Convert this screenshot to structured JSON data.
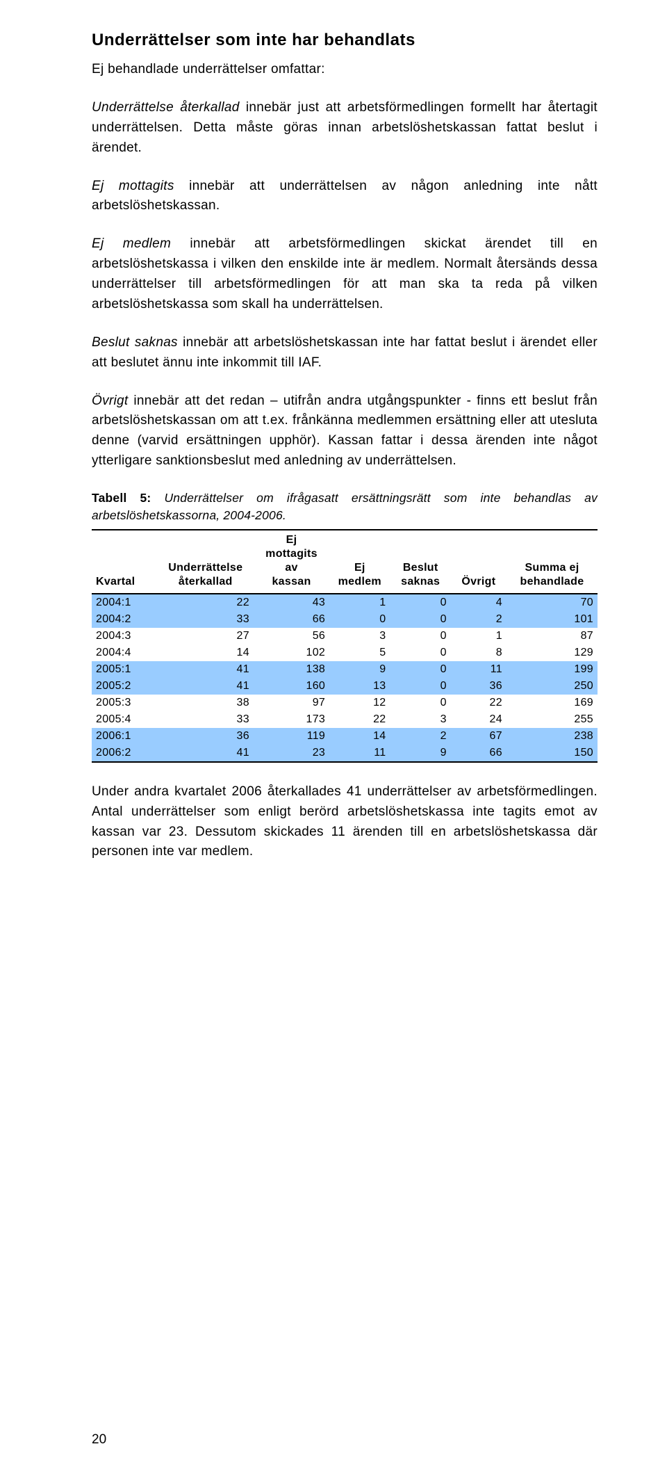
{
  "section_title": "Underrättelser som inte har behandlats",
  "intro": "Ej behandlade underrättelser omfattar:",
  "p1_lead": "Underrättelse återkallad",
  "p1_body": " innebär just att arbetsförmedlingen formellt har återtagit underrättelsen. Detta måste göras innan arbetslöshetskassan fattat beslut i ärendet.",
  "p2_lead": "Ej mottagits",
  "p2_body": " innebär att underrättelsen av någon anledning inte nått arbetslöshetskassan.",
  "p3_lead": "Ej medlem",
  "p3_body": " innebär att arbetsförmedlingen skickat ärendet till en arbetslöshetskassa i vilken den enskilde inte är medlem. Normalt återsänds dessa underrättelser till arbetsförmedlingen för att man ska ta reda på vilken arbetslöshetskassa som skall ha underrättelsen.",
  "p4_lead": "Beslut saknas",
  "p4_body": " innebär att arbetslöshetskassan inte har fattat beslut i ärendet eller att beslutet ännu inte inkommit till IAF.",
  "p5_lead": "Övrigt",
  "p5_body": " innebär att det redan – utifrån andra utgångspunkter - finns ett beslut från arbetslöshetskassan om att t.ex. frånkänna medlemmen ersättning eller att utesluta denne (varvid ersättningen upphör). Kassan fattar i dessa ärenden inte något ytterligare sanktionsbeslut med anledning av underrättelsen.",
  "table_caption_label": "Tabell 5:",
  "table_caption_text": " Underrättelser om ifrågasatt ersättningsrätt som inte behandlas av arbetslöshetskassorna, 2004-2006.",
  "table": {
    "columns": [
      "Kvartal",
      "Underrättelse återkallad",
      "Ej mottagits av kassan",
      "Ej medlem",
      "Beslut saknas",
      "Övrigt",
      "Summa ej behandlade"
    ],
    "col_widths_pct": [
      13,
      19,
      15,
      12,
      12,
      11,
      18
    ],
    "rows": [
      {
        "cells": [
          "2004:1",
          "22",
          "43",
          "1",
          "0",
          "4",
          "70"
        ],
        "highlight": true
      },
      {
        "cells": [
          "2004:2",
          "33",
          "66",
          "0",
          "0",
          "2",
          "101"
        ],
        "highlight": true
      },
      {
        "cells": [
          "2004:3",
          "27",
          "56",
          "3",
          "0",
          "1",
          "87"
        ],
        "highlight": false
      },
      {
        "cells": [
          "2004:4",
          "14",
          "102",
          "5",
          "0",
          "8",
          "129"
        ],
        "highlight": false
      },
      {
        "cells": [
          "2005:1",
          "41",
          "138",
          "9",
          "0",
          "11",
          "199"
        ],
        "highlight": true
      },
      {
        "cells": [
          "2005:2",
          "41",
          "160",
          "13",
          "0",
          "36",
          "250"
        ],
        "highlight": true
      },
      {
        "cells": [
          "2005:3",
          "38",
          "97",
          "12",
          "0",
          "22",
          "169"
        ],
        "highlight": false
      },
      {
        "cells": [
          "2005:4",
          "33",
          "173",
          "22",
          "3",
          "24",
          "255"
        ],
        "highlight": false
      },
      {
        "cells": [
          "2006:1",
          "36",
          "119",
          "14",
          "2",
          "67",
          "238"
        ],
        "highlight": true
      },
      {
        "cells": [
          "2006:2",
          "41",
          "23",
          "11",
          "9",
          "66",
          "150"
        ],
        "highlight": true
      }
    ],
    "highlight_color": "#99ccff",
    "border_color": "#000000"
  },
  "closing_paragraph": "Under andra kvartalet 2006 återkallades 41 underrättelser av arbetsförmedlingen. Antal underrättelser som enligt berörd arbetslöshetskassa inte tagits emot av kassan var 23. Dessutom skickades 11 ärenden till en arbetslöshetskassa där personen inte var medlem.",
  "page_number": "20"
}
